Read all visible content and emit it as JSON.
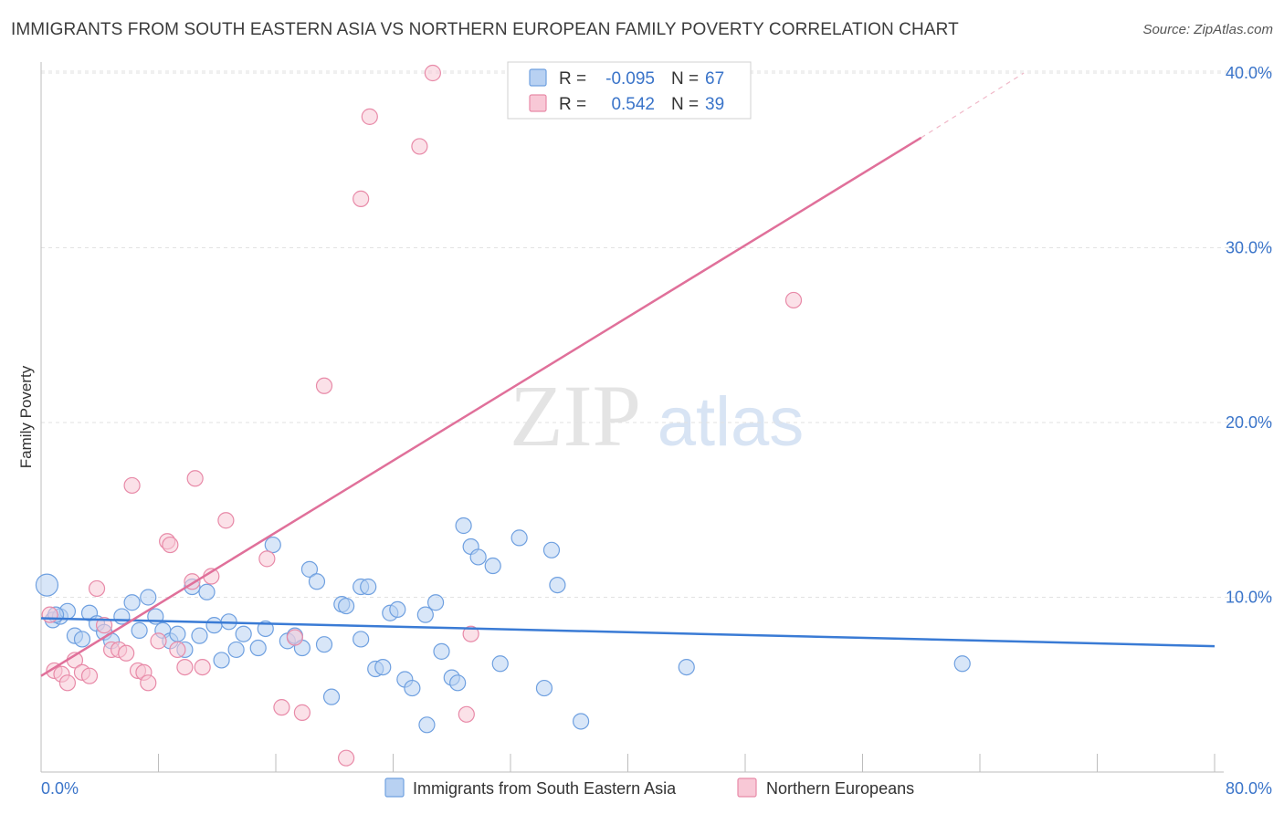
{
  "header": {
    "title": "IMMIGRANTS FROM SOUTH EASTERN ASIA VS NORTHERN EUROPEAN FAMILY POVERTY CORRELATION CHART",
    "source": "Source: ZipAtlas.com"
  },
  "watermark": {
    "zip": "ZIP",
    "atlas": "atlas"
  },
  "stats_legend": [
    {
      "r_label": "R =",
      "r_value": "-0.095",
      "n_label": "N =",
      "n_value": "67",
      "color": "#6fa0e0",
      "fill": "#b8d1f2"
    },
    {
      "r_label": "R =",
      "r_value": "0.542",
      "n_label": "N =",
      "n_value": "39",
      "color": "#e88aa8",
      "fill": "#f8c8d6"
    }
  ],
  "chart_data": {
    "type": "scatter",
    "title": "IMMIGRANTS FROM SOUTH EASTERN ASIA VS NORTHERN EUROPEAN FAMILY POVERTY CORRELATION CHART",
    "xlabel": "",
    "ylabel": "Family Poverty",
    "xlim": [
      0,
      80
    ],
    "ylim": [
      0,
      40
    ],
    "x_tick_labels": [
      "0.0%",
      "80.0%"
    ],
    "y_ticks": [
      10,
      20,
      30,
      40
    ],
    "y_tick_labels": [
      "10.0%",
      "20.0%",
      "30.0%",
      "40.0%"
    ],
    "grid": true,
    "legend_position": "bottom-center",
    "series": [
      {
        "name": "Immigrants from South Eastern Asia",
        "color": "#6fa0e0",
        "fill": "#b8d1f2",
        "line_color": "#3a7bd5",
        "trend": {
          "x": [
            0,
            80
          ],
          "y": [
            8.8,
            7.2
          ]
        },
        "points": [
          [
            0.4,
            10.7
          ],
          [
            0.8,
            8.7
          ],
          [
            1.3,
            8.9
          ],
          [
            1.8,
            9.2
          ],
          [
            2.3,
            7.8
          ],
          [
            2.8,
            7.6
          ],
          [
            3.3,
            9.1
          ],
          [
            3.8,
            8.5
          ],
          [
            4.3,
            8.0
          ],
          [
            4.8,
            7.5
          ],
          [
            5.5,
            8.9
          ],
          [
            6.2,
            9.7
          ],
          [
            6.7,
            8.1
          ],
          [
            7.3,
            10.0
          ],
          [
            7.8,
            8.9
          ],
          [
            8.3,
            8.1
          ],
          [
            8.8,
            7.5
          ],
          [
            9.3,
            7.9
          ],
          [
            9.8,
            7.0
          ],
          [
            10.3,
            10.6
          ],
          [
            10.8,
            7.8
          ],
          [
            11.3,
            10.3
          ],
          [
            11.8,
            8.4
          ],
          [
            12.3,
            6.4
          ],
          [
            12.8,
            8.6
          ],
          [
            13.3,
            7.0
          ],
          [
            13.8,
            7.9
          ],
          [
            14.8,
            7.1
          ],
          [
            15.3,
            8.2
          ],
          [
            15.8,
            13.0
          ],
          [
            16.8,
            7.5
          ],
          [
            17.3,
            7.8
          ],
          [
            17.8,
            7.1
          ],
          [
            18.3,
            11.6
          ],
          [
            18.8,
            10.9
          ],
          [
            19.3,
            7.3
          ],
          [
            19.8,
            4.3
          ],
          [
            20.5,
            9.6
          ],
          [
            20.8,
            9.5
          ],
          [
            21.8,
            7.6
          ],
          [
            21.8,
            10.6
          ],
          [
            22.3,
            10.6
          ],
          [
            22.8,
            5.9
          ],
          [
            23.3,
            6.0
          ],
          [
            23.8,
            9.1
          ],
          [
            24.3,
            9.3
          ],
          [
            24.8,
            5.3
          ],
          [
            25.3,
            4.8
          ],
          [
            26.2,
            9.0
          ],
          [
            26.3,
            2.7
          ],
          [
            26.9,
            9.7
          ],
          [
            27.3,
            6.9
          ],
          [
            28.0,
            5.4
          ],
          [
            28.4,
            5.1
          ],
          [
            28.8,
            14.1
          ],
          [
            29.3,
            12.9
          ],
          [
            29.8,
            12.3
          ],
          [
            30.8,
            11.8
          ],
          [
            31.3,
            6.2
          ],
          [
            32.6,
            13.4
          ],
          [
            34.3,
            4.8
          ],
          [
            34.8,
            12.7
          ],
          [
            35.2,
            10.7
          ],
          [
            36.8,
            2.9
          ],
          [
            44.0,
            6.0
          ],
          [
            62.8,
            6.2
          ],
          [
            1.0,
            9.0
          ]
        ]
      },
      {
        "name": "Northern Europeans",
        "color": "#e88aa8",
        "fill": "#f8c8d6",
        "line_color": "#e0709a",
        "trend": {
          "x": [
            0,
            60
          ],
          "y": [
            5.5,
            36.3
          ]
        },
        "trend_dashed": {
          "x": [
            60,
            67
          ],
          "y": [
            36.3,
            40.0
          ]
        },
        "points": [
          [
            0.6,
            9.0
          ],
          [
            0.9,
            5.8
          ],
          [
            1.4,
            5.6
          ],
          [
            1.8,
            5.1
          ],
          [
            2.3,
            6.4
          ],
          [
            2.8,
            5.7
          ],
          [
            3.3,
            5.5
          ],
          [
            3.8,
            10.5
          ],
          [
            4.3,
            8.4
          ],
          [
            4.8,
            7.0
          ],
          [
            5.3,
            7.0
          ],
          [
            5.8,
            6.8
          ],
          [
            6.2,
            16.4
          ],
          [
            6.6,
            5.8
          ],
          [
            7.0,
            5.7
          ],
          [
            7.3,
            5.1
          ],
          [
            8.0,
            7.5
          ],
          [
            8.6,
            13.2
          ],
          [
            8.8,
            13.0
          ],
          [
            9.3,
            7.0
          ],
          [
            9.8,
            6.0
          ],
          [
            10.3,
            10.9
          ],
          [
            10.5,
            16.8
          ],
          [
            11.0,
            6.0
          ],
          [
            11.6,
            11.2
          ],
          [
            12.6,
            14.4
          ],
          [
            15.4,
            12.2
          ],
          [
            16.4,
            3.7
          ],
          [
            17.3,
            7.7
          ],
          [
            17.8,
            3.4
          ],
          [
            19.3,
            22.1
          ],
          [
            20.8,
            0.8
          ],
          [
            21.8,
            32.8
          ],
          [
            22.4,
            37.5
          ],
          [
            25.8,
            35.8
          ],
          [
            26.7,
            40.0
          ],
          [
            29.0,
            3.3
          ],
          [
            29.3,
            7.9
          ],
          [
            51.3,
            27.0
          ]
        ]
      }
    ]
  }
}
